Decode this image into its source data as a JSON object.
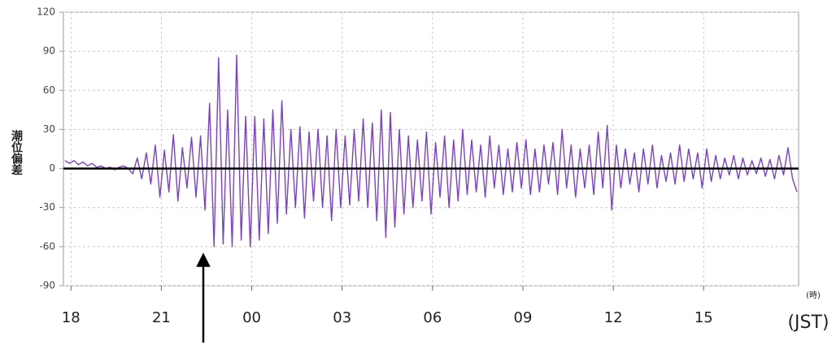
{
  "chart_data": {
    "type": "line",
    "y_label": "潮位偏差",
    "x_unit_label": "(時)",
    "x_label": "(JST)",
    "xlim": [
      -0.25,
      24.15
    ],
    "ylim": [
      -90,
      120
    ],
    "yticks": [
      120,
      90,
      60,
      30,
      0,
      -30,
      -60,
      -90
    ],
    "xticks": [
      {
        "value": 0,
        "label": "18"
      },
      {
        "value": 3,
        "label": "21"
      },
      {
        "value": 6,
        "label": "00"
      },
      {
        "value": 9,
        "label": "03"
      },
      {
        "value": 12,
        "label": "06"
      },
      {
        "value": 15,
        "label": "09"
      },
      {
        "value": 18,
        "label": "12"
      },
      {
        "value": 21,
        "label": "15"
      }
    ],
    "grid": true,
    "zero_line": true,
    "series": [
      {
        "color": "#7b3fd0",
        "x": [
          -0.2,
          -0.05,
          0.1,
          0.25,
          0.4,
          0.55,
          0.7,
          0.85,
          1.0,
          1.15,
          1.3,
          1.45,
          1.6,
          1.75,
          1.9,
          2.05,
          2.2,
          2.35,
          2.5,
          2.65,
          2.8,
          2.95,
          3.1,
          3.25,
          3.4,
          3.55,
          3.7,
          3.85,
          4.0,
          4.15,
          4.3,
          4.45,
          4.6,
          4.75,
          4.9,
          5.05,
          5.2,
          5.35,
          5.5,
          5.65,
          5.8,
          5.95,
          6.1,
          6.25,
          6.4,
          6.55,
          6.7,
          6.85,
          7.0,
          7.15,
          7.3,
          7.45,
          7.6,
          7.75,
          7.9,
          8.05,
          8.2,
          8.35,
          8.5,
          8.65,
          8.8,
          8.95,
          9.1,
          9.25,
          9.4,
          9.55,
          9.7,
          9.85,
          10.0,
          10.15,
          10.3,
          10.45,
          10.6,
          10.75,
          10.9,
          11.05,
          11.2,
          11.35,
          11.5,
          11.65,
          11.8,
          11.95,
          12.1,
          12.25,
          12.4,
          12.55,
          12.7,
          12.85,
          13.0,
          13.15,
          13.3,
          13.45,
          13.6,
          13.75,
          13.9,
          14.05,
          14.2,
          14.35,
          14.5,
          14.65,
          14.8,
          14.95,
          15.1,
          15.25,
          15.4,
          15.55,
          15.7,
          15.85,
          16.0,
          16.15,
          16.3,
          16.45,
          16.6,
          16.75,
          16.9,
          17.05,
          17.2,
          17.35,
          17.5,
          17.65,
          17.8,
          17.95,
          18.1,
          18.25,
          18.4,
          18.55,
          18.7,
          18.85,
          19.0,
          19.15,
          19.3,
          19.45,
          19.6,
          19.75,
          19.9,
          20.05,
          20.2,
          20.35,
          20.5,
          20.65,
          20.8,
          20.95,
          21.1,
          21.25,
          21.4,
          21.55,
          21.7,
          21.85,
          22.0,
          22.15,
          22.3,
          22.45,
          22.6,
          22.75,
          22.9,
          23.05,
          23.2,
          23.35,
          23.5,
          23.65,
          23.8,
          23.95,
          24.1
        ],
        "values": [
          6,
          4,
          6,
          3,
          5,
          2,
          4,
          1,
          2,
          0,
          1,
          -1,
          1,
          2,
          0,
          -4,
          8,
          -8,
          12,
          -12,
          18,
          -22,
          14,
          -18,
          26,
          -25,
          16,
          -15,
          24,
          -22,
          25,
          -32,
          50,
          -60,
          85,
          -58,
          45,
          -60,
          87,
          -55,
          40,
          -60,
          40,
          -55,
          38,
          -50,
          45,
          -42,
          52,
          -35,
          30,
          -30,
          32,
          -38,
          28,
          -25,
          30,
          -30,
          25,
          -40,
          30,
          -30,
          25,
          -28,
          30,
          -25,
          38,
          -30,
          35,
          -40,
          45,
          -53,
          43,
          -45,
          30,
          -35,
          25,
          -30,
          22,
          -25,
          28,
          -35,
          20,
          -22,
          25,
          -30,
          22,
          -25,
          30,
          -20,
          22,
          -18,
          18,
          -22,
          25,
          -15,
          18,
          -20,
          15,
          -18,
          20,
          -15,
          22,
          -20,
          15,
          -18,
          18,
          -12,
          20,
          -20,
          30,
          -15,
          18,
          -22,
          15,
          -15,
          18,
          -20,
          28,
          -15,
          33,
          -32,
          18,
          -15,
          15,
          -12,
          12,
          -18,
          15,
          -12,
          18,
          -15,
          10,
          -10,
          12,
          -12,
          18,
          -10,
          15,
          -8,
          12,
          -15,
          15,
          -10,
          10,
          -8,
          8,
          -5,
          10,
          -8,
          8,
          -5,
          6,
          -4,
          8,
          -6,
          7,
          -8,
          10,
          -5,
          16,
          -8,
          -18
        ]
      }
    ]
  }
}
